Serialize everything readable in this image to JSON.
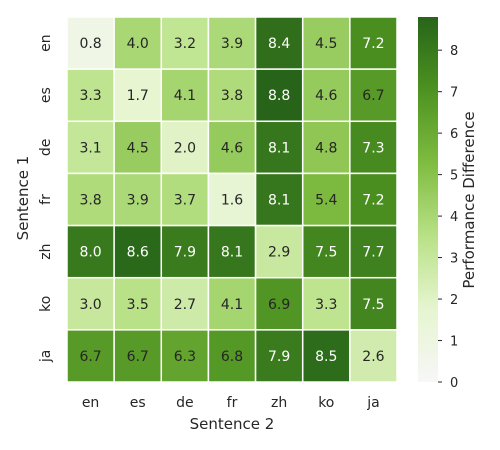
{
  "chart_data": {
    "type": "heatmap",
    "xlabel": "Sentence 2",
    "ylabel": "Sentence 1",
    "x_categories": [
      "en",
      "es",
      "de",
      "fr",
      "zh",
      "ko",
      "ja"
    ],
    "y_categories": [
      "en",
      "es",
      "de",
      "fr",
      "zh",
      "ko",
      "ja"
    ],
    "values": [
      [
        0.8,
        4.0,
        3.2,
        3.9,
        8.4,
        4.5,
        7.2
      ],
      [
        3.3,
        1.7,
        4.1,
        3.8,
        8.8,
        4.6,
        6.7
      ],
      [
        3.1,
        4.5,
        2.0,
        4.6,
        8.1,
        4.8,
        7.3
      ],
      [
        3.8,
        3.9,
        3.7,
        1.6,
        8.1,
        5.4,
        7.2
      ],
      [
        8.0,
        8.6,
        7.9,
        8.1,
        2.9,
        7.5,
        7.7
      ],
      [
        3.0,
        3.5,
        2.7,
        4.1,
        6.9,
        3.3,
        7.5
      ],
      [
        6.7,
        6.7,
        6.3,
        6.8,
        7.9,
        8.5,
        2.6
      ]
    ],
    "value_labels": [
      [
        "0.8",
        "4.0",
        "3.2",
        "3.9",
        "8.4",
        "4.5",
        "7.2"
      ],
      [
        "3.3",
        "1.7",
        "4.1",
        "3.8",
        "8.8",
        "4.6",
        "6.7"
      ],
      [
        "3.1",
        "4.5",
        "2.0",
        "4.6",
        "8.1",
        "4.8",
        "7.3"
      ],
      [
        "3.8",
        "3.9",
        "3.7",
        "1.6",
        "8.1",
        "5.4",
        "7.2"
      ],
      [
        "8.0",
        "8.6",
        "7.9",
        "8.1",
        "2.9",
        "7.5",
        "7.7"
      ],
      [
        "3.0",
        "3.5",
        "2.7",
        "4.1",
        "6.9",
        "3.3",
        "7.5"
      ],
      [
        "6.7",
        "6.7",
        "6.3",
        "6.8",
        "7.9",
        "8.5",
        "2.6"
      ]
    ],
    "colorbar": {
      "label": "Performance Difference",
      "range": [
        0,
        8.8
      ],
      "ticks": [
        0,
        1,
        2,
        3,
        4,
        5,
        6,
        7,
        8
      ],
      "tick_labels": [
        "0",
        "1",
        "2",
        "3",
        "4",
        "5",
        "6",
        "7",
        "8"
      ],
      "colors": [
        "#f7f7f7",
        "#e6f5d0",
        "#b8e186",
        "#7fbc41",
        "#4d9221",
        "#276419"
      ]
    },
    "grid": false
  }
}
